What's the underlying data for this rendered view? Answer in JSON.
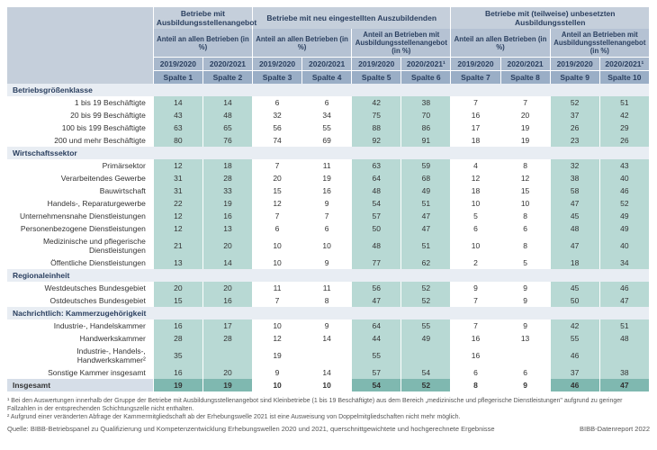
{
  "header": {
    "group1": "Betriebe mit Ausbildungsstellenangebot",
    "group2": "Betriebe mit neu eingestellten Auszubildenden",
    "group3": "Betriebe mit (teilweise) unbesetzten Ausbildungsstellen",
    "sub1": "Anteil an allen Betrieben (in %)",
    "sub2": "Anteil an allen Betrieben (in %)",
    "sub3": "Anteil an Betrieben mit Ausbildungsstellenangebot (in %)",
    "sub4": "Anteil an allen Betrieben (in %)",
    "sub5": "Anteil an Betrieben mit Ausbildungsstellenangebot (in %)",
    "y1": "2019/2020",
    "y2": "2020/2021",
    "y3": "2019/2020",
    "y4": "2020/2021",
    "y5": "2019/2020",
    "y6": "2020/2021¹",
    "y7": "2019/2020",
    "y8": "2020/2021",
    "y9": "2019/2020",
    "y10": "2020/2021¹",
    "s1": "Spalte 1",
    "s2": "Spalte 2",
    "s3": "Spalte 3",
    "s4": "Spalte 4",
    "s5": "Spalte 5",
    "s6": "Spalte 6",
    "s7": "Spalte 7",
    "s8": "Spalte 8",
    "s9": "Spalte 9",
    "s10": "Spalte 10"
  },
  "groups": [
    {
      "title": "Betriebsgrößenklasse",
      "rows": [
        {
          "label": "1 bis 19 Beschäftigte",
          "v": [
            14,
            14,
            6,
            6,
            42,
            38,
            7,
            7,
            52,
            51
          ]
        },
        {
          "label": "20 bis 99 Beschäftigte",
          "v": [
            43,
            48,
            32,
            34,
            75,
            70,
            16,
            20,
            37,
            42
          ]
        },
        {
          "label": "100 bis 199 Beschäftigte",
          "v": [
            63,
            65,
            56,
            55,
            88,
            86,
            17,
            19,
            26,
            29
          ]
        },
        {
          "label": "200 und mehr Beschäftigte",
          "v": [
            80,
            76,
            74,
            69,
            92,
            91,
            18,
            19,
            23,
            26
          ]
        }
      ]
    },
    {
      "title": "Wirtschaftssektor",
      "rows": [
        {
          "label": "Primärsektor",
          "v": [
            12,
            18,
            7,
            11,
            63,
            59,
            4,
            8,
            32,
            43
          ]
        },
        {
          "label": "Verarbeitendes Gewerbe",
          "v": [
            31,
            28,
            20,
            19,
            64,
            68,
            12,
            12,
            38,
            40
          ]
        },
        {
          "label": "Bauwirtschaft",
          "v": [
            31,
            33,
            15,
            16,
            48,
            49,
            18,
            15,
            58,
            46
          ]
        },
        {
          "label": "Handels-, Reparaturgewerbe",
          "v": [
            22,
            19,
            12,
            9,
            54,
            51,
            10,
            10,
            47,
            52
          ]
        },
        {
          "label": "Unternehmensnahe Dienstleistungen",
          "v": [
            12,
            16,
            7,
            7,
            57,
            47,
            5,
            8,
            45,
            49
          ]
        },
        {
          "label": "Personenbezogene Dienstleistungen",
          "v": [
            12,
            13,
            6,
            6,
            50,
            47,
            6,
            6,
            48,
            49
          ]
        },
        {
          "label": "Medizinische und pflegerische Dienstleistungen",
          "v": [
            21,
            20,
            10,
            10,
            48,
            51,
            10,
            8,
            47,
            40
          ]
        },
        {
          "label": "Öffentliche Dienstleistungen",
          "v": [
            13,
            14,
            10,
            9,
            77,
            62,
            2,
            5,
            18,
            34
          ]
        }
      ]
    },
    {
      "title": "Regionaleinheit",
      "rows": [
        {
          "label": "Westdeutsches Bundesgebiet",
          "v": [
            20,
            20,
            11,
            11,
            56,
            52,
            9,
            9,
            45,
            46
          ]
        },
        {
          "label": "Ostdeutsches Bundesgebiet",
          "v": [
            15,
            16,
            7,
            8,
            47,
            52,
            7,
            9,
            50,
            47
          ]
        }
      ]
    },
    {
      "title": "Nachrichtlich: Kammerzugehörigkeit",
      "rows": [
        {
          "label": "Industrie-, Handelskammer",
          "v": [
            16,
            17,
            10,
            9,
            64,
            55,
            7,
            9,
            42,
            51
          ]
        },
        {
          "label": "Handwerkskammer",
          "v": [
            28,
            28,
            12,
            14,
            44,
            49,
            16,
            13,
            55,
            48
          ]
        },
        {
          "label": "Industrie-, Handels-, Handwerkskammer²",
          "v": [
            35,
            "",
            19,
            "",
            55,
            "",
            16,
            "",
            46,
            ""
          ]
        },
        {
          "label": "Sonstige Kammer insgesamt",
          "v": [
            16,
            20,
            9,
            14,
            57,
            54,
            6,
            6,
            37,
            38
          ]
        }
      ]
    }
  ],
  "total": {
    "label": "Insgesamt",
    "v": [
      19,
      19,
      10,
      10,
      54,
      52,
      8,
      9,
      46,
      47
    ]
  },
  "footnotes": {
    "f1": "¹ Bei den Auswertungen innerhalb der Gruppe der Betriebe mit Ausbildungsstellenangebot sind Kleinbetriebe (1 bis 19 Beschäftigte) aus dem Bereich „medizinische und pflegerische Dienstleistungen\" aufgrund zu geringer Fallzahlen in der entsprechenden Schichtungszelle nicht enthalten.",
    "f2": "² Aufgrund einer veränderten Abfrage der Kammermitgliedschaft ab der Erhebungswelle 2021 ist eine Ausweisung von Doppelmitgliedschaften nicht mehr möglich.",
    "source": "Quelle: BIBB-Betriebspanel zu Qualifizierung und Kompetenzentwicklung Erhebungswellen 2020 und 2021, querschnittgewichtete und hochgerechnete Ergebnisse",
    "report": "BIBB-Datenreport 2022"
  },
  "colors": {
    "teal": "#b8d9d4",
    "teal_dark": "#7fb8b0",
    "header1": "#c5cfdb",
    "header2": "#b5c2d3",
    "header3": "#a8b8cc",
    "header4": "#9aaec6",
    "group_bg": "#e8edf3",
    "text_header": "#2a3f5f"
  }
}
